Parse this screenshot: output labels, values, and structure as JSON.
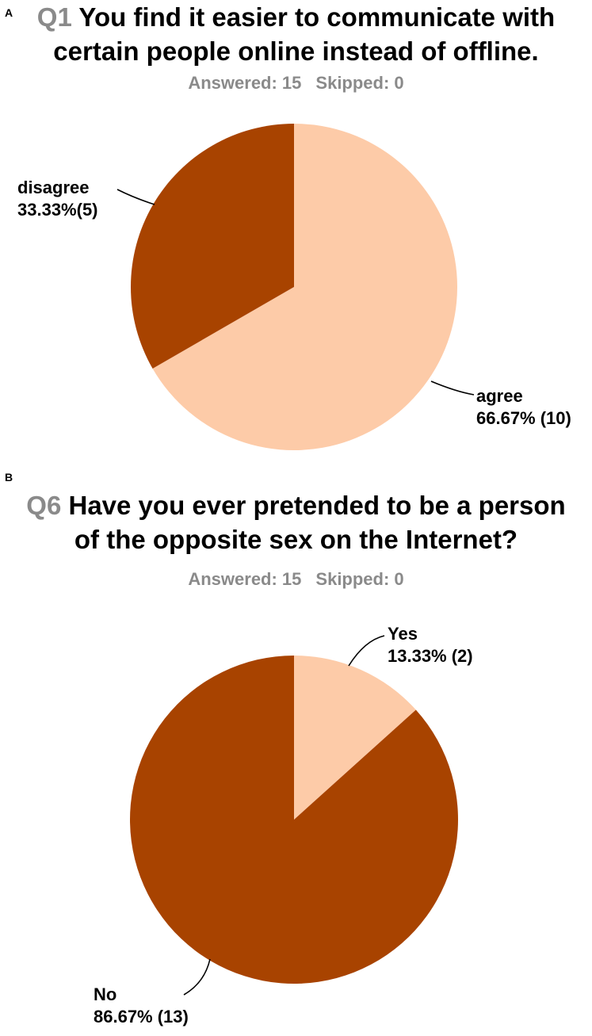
{
  "panels": [
    {
      "letter": "A",
      "qnum": "Q1",
      "question_line1": "You find it easier to communicate with",
      "question_line2": "certain people online instead of offline.",
      "answered": "Answered: 15",
      "skipped": "Skipped: 0"
    },
    {
      "letter": "B",
      "qnum": "Q6",
      "question_line1": "Have you ever pretended to be a person",
      "question_line2": "of the opposite sex on the Internet?",
      "answered": "Answered: 15",
      "skipped": "Skipped: 0"
    }
  ],
  "colors": {
    "light": "#fdcba8",
    "dark": "#a84300",
    "muted_text": "#8a8a8a"
  },
  "chart_data": [
    {
      "type": "pie",
      "title": "Q1 You find it easier to communicate with certain people online instead of offline.",
      "slices": [
        {
          "label": "agree",
          "value": 66.67,
          "count": 10,
          "text": "66.67% (10)",
          "color": "#fdcba8"
        },
        {
          "label": "disagree",
          "value": 33.33,
          "count": 5,
          "text": "33.33%(5)",
          "color": "#a84300"
        }
      ]
    },
    {
      "type": "pie",
      "title": "Q6 Have you ever pretended to be a person of the opposite sex on the Internet?",
      "slices": [
        {
          "label": "Yes",
          "value": 13.33,
          "count": 2,
          "text": "13.33% (2)",
          "color": "#fdcba8"
        },
        {
          "label": "No",
          "value": 86.67,
          "count": 13,
          "text": "86.67% (13)",
          "color": "#a84300"
        }
      ]
    }
  ]
}
